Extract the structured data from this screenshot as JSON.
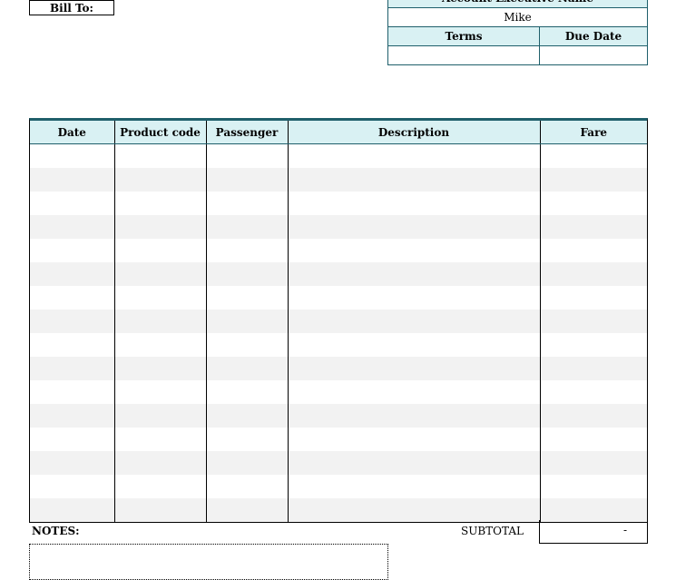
{
  "bill_to": {
    "label": "Bill To:"
  },
  "account": {
    "exec_header": "Account Executive Name",
    "exec_name": "Mike",
    "terms_header": "Terms",
    "due_date_header": "Due Date",
    "terms_value": "",
    "due_date_value": ""
  },
  "items": {
    "columns": [
      "Date",
      "Product code",
      "Passenger",
      "Description",
      "Fare"
    ],
    "row_count": 16
  },
  "footer": {
    "notes_label": "NOTES:",
    "subtotal_label": "SUBTOTAL",
    "subtotal_value": "-"
  },
  "colors": {
    "accent": "#1f5f6b",
    "header_bg": "#d9f1f3",
    "stripe": "#f2f2f2"
  }
}
